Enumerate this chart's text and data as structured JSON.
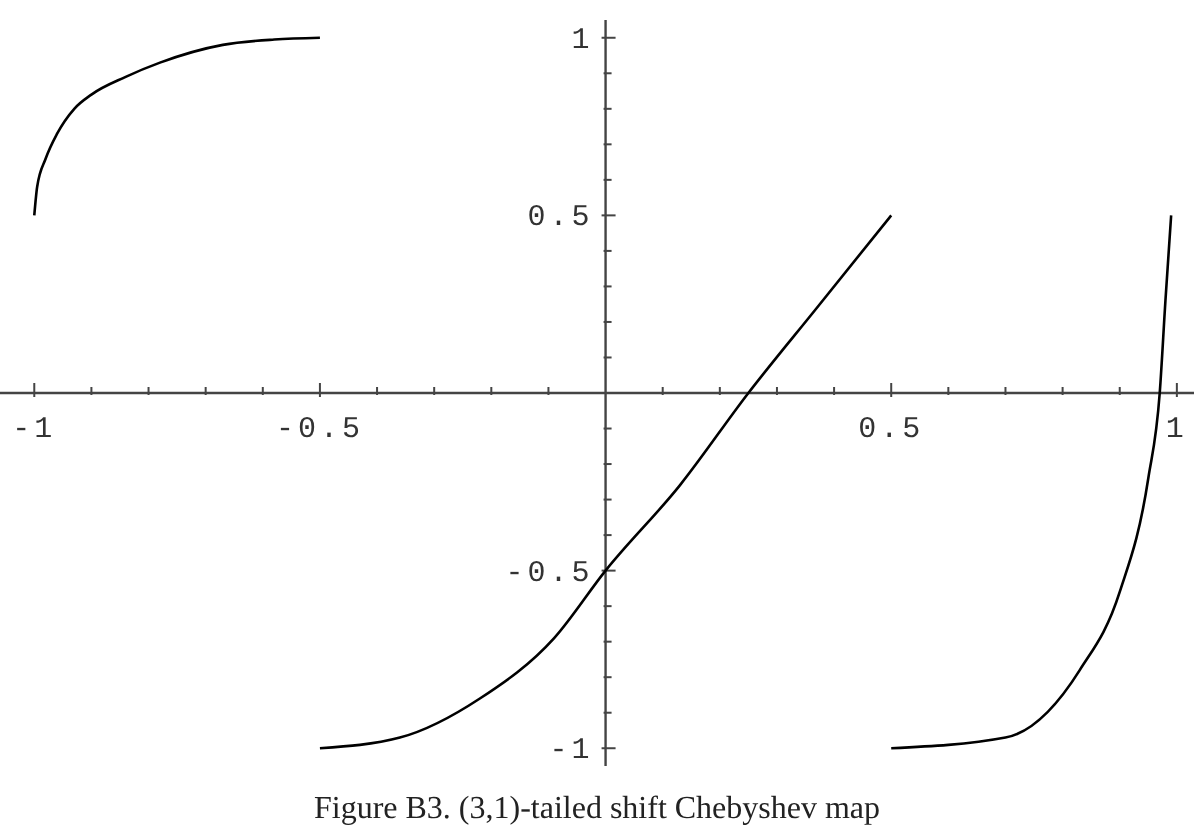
{
  "chart_data": {
    "type": "line",
    "annotations": [
      "Figure B3. (3,1)-tailed shift Chebyshev map"
    ],
    "xlim": [
      -1.06,
      1.03
    ],
    "ylim": [
      -1.05,
      1.05
    ],
    "xticks": [
      {
        "value": -1,
        "label": "-1"
      },
      {
        "value": -0.9,
        "label": null
      },
      {
        "value": -0.8,
        "label": null
      },
      {
        "value": -0.7,
        "label": null
      },
      {
        "value": -0.6,
        "label": null
      },
      {
        "value": -0.5,
        "label": "-0.5"
      },
      {
        "value": -0.4,
        "label": null
      },
      {
        "value": -0.3,
        "label": null
      },
      {
        "value": -0.2,
        "label": null
      },
      {
        "value": -0.1,
        "label": null
      },
      {
        "value": 0.1,
        "label": null
      },
      {
        "value": 0.2,
        "label": null
      },
      {
        "value": 0.3,
        "label": null
      },
      {
        "value": 0.4,
        "label": null
      },
      {
        "value": 0.5,
        "label": "0.5"
      },
      {
        "value": 0.6,
        "label": null
      },
      {
        "value": 0.7,
        "label": null
      },
      {
        "value": 0.8,
        "label": null
      },
      {
        "value": 0.9,
        "label": null
      },
      {
        "value": 1,
        "label": "1"
      }
    ],
    "yticks": [
      {
        "value": -1,
        "label": "-1"
      },
      {
        "value": -0.9,
        "label": null
      },
      {
        "value": -0.8,
        "label": null
      },
      {
        "value": -0.7,
        "label": null
      },
      {
        "value": -0.6,
        "label": null
      },
      {
        "value": -0.5,
        "label": "-0.5"
      },
      {
        "value": -0.4,
        "label": null
      },
      {
        "value": -0.3,
        "label": null
      },
      {
        "value": -0.2,
        "label": null
      },
      {
        "value": -0.1,
        "label": null
      },
      {
        "value": 0.1,
        "label": null
      },
      {
        "value": 0.2,
        "label": null
      },
      {
        "value": 0.3,
        "label": null
      },
      {
        "value": 0.4,
        "label": null
      },
      {
        "value": 0.5,
        "label": "0.5"
      },
      {
        "value": 0.6,
        "label": null
      },
      {
        "value": 0.7,
        "label": null
      },
      {
        "value": 0.8,
        "label": null
      },
      {
        "value": 0.9,
        "label": null
      },
      {
        "value": 1,
        "label": "1"
      }
    ],
    "grid": false,
    "marker": "none",
    "line_style": "solid",
    "series": [
      {
        "color": "#000000",
        "x": [
          -1,
          -0.995,
          -0.98,
          -0.96,
          -0.93,
          -0.9,
          -0.84,
          -0.78,
          -0.67,
          -0.58,
          -0.5
        ],
        "values": [
          0.5,
          0.58,
          0.66,
          0.73,
          0.8,
          0.84,
          0.89,
          0.93,
          0.98,
          0.995,
          1
        ]
      },
      {
        "color": "#000000",
        "x": [
          -0.5,
          -0.36,
          -0.22,
          -0.09,
          0,
          0.13,
          0.25,
          0.37,
          0.5
        ],
        "values": [
          -1,
          -0.97,
          -0.86,
          -0.69,
          -0.5,
          -0.26,
          0,
          0.24,
          0.5
        ]
      },
      {
        "color": "#000000",
        "x": [
          0.5,
          0.7,
          0.83,
          0.9,
          0.95,
          0.97,
          0.98,
          0.99
        ],
        "values": [
          -1,
          -0.97,
          -0.78,
          -0.56,
          -0.24,
          0,
          0.26,
          0.5
        ]
      }
    ]
  }
}
